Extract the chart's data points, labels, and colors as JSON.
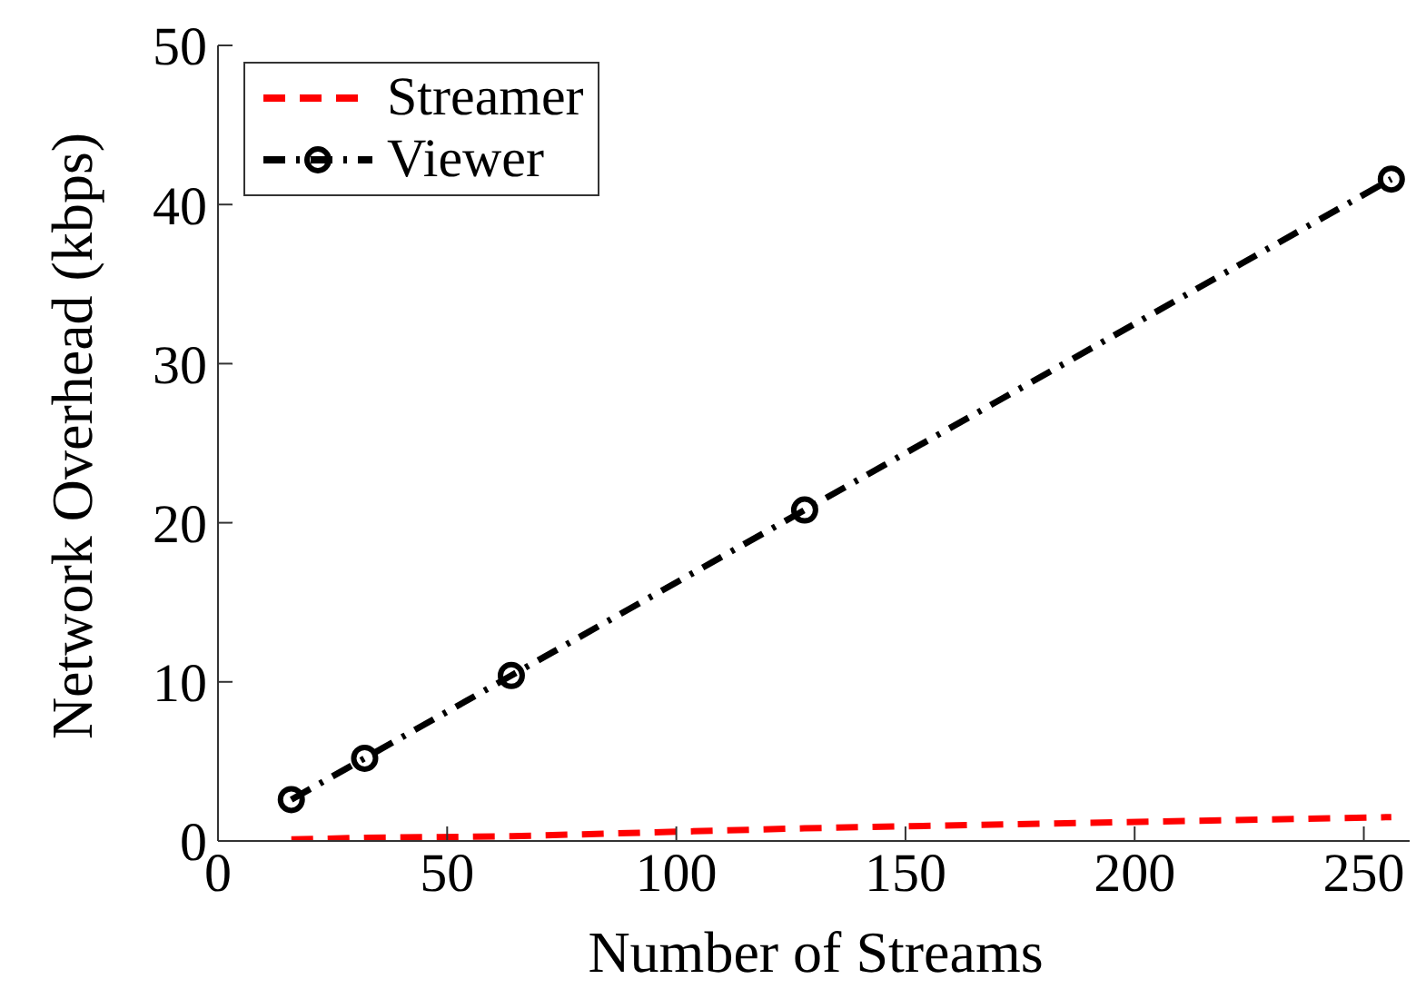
{
  "chart_data": {
    "type": "line",
    "xlabel": "Number of Streams",
    "ylabel": "Network Overhead (kbps)",
    "x": [
      16,
      32,
      64,
      128,
      256
    ],
    "series": [
      {
        "name": "Streamer",
        "color": "#ff0000",
        "values": [
          0.1,
          0.2,
          0.3,
          0.8,
          1.5
        ],
        "marker": "none",
        "line_style": "dashed"
      },
      {
        "name": "Viewer",
        "color": "#000000",
        "values": [
          2.6,
          5.2,
          10.4,
          20.8,
          41.6
        ],
        "marker": "circle",
        "line_style": "dashdot"
      }
    ],
    "xlim": [
      0,
      260
    ],
    "xticks": [
      0,
      50,
      100,
      150,
      200,
      250
    ],
    "ylim": [
      0,
      50
    ],
    "yticks": [
      0,
      10,
      20,
      30,
      40,
      50
    ],
    "grid": false,
    "legend": "top left"
  }
}
